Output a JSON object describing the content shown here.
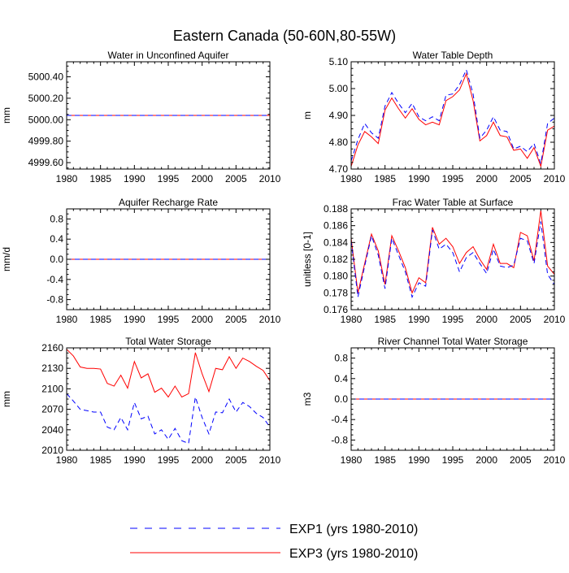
{
  "title": "Eastern Canada (50-60N,80-55W)",
  "legend": {
    "placement": "bottom-center",
    "entries": [
      {
        "name": "EXP1 (yrs 1980-2010)",
        "color": "#0000ff",
        "dash": "dashed"
      },
      {
        "name": "EXP3 (yrs 1980-2010)",
        "color": "#ff0000",
        "dash": "solid"
      }
    ]
  },
  "chart_data": [
    {
      "type": "line",
      "title": "Water in Unconfined Aquifer",
      "ylabel": "mm",
      "xlabel": "",
      "xlim": [
        1980,
        2010
      ],
      "ylim": [
        4999.54,
        5000.54
      ],
      "xticks": [
        1980,
        1985,
        1990,
        1995,
        2000,
        2005,
        2010
      ],
      "yticks": [
        4999.6,
        4999.8,
        5000.0,
        5000.2,
        5000.4
      ],
      "ytick_labels": [
        "4999.60",
        "4999.80",
        "5000.00",
        "5000.20",
        "5000.40"
      ],
      "x": [
        1980,
        2010
      ],
      "series": [
        {
          "name": "EXP3 (yrs 1980-2010)",
          "color": "#ff0000",
          "dash": "solid",
          "values": [
            5000.04,
            5000.04
          ]
        },
        {
          "name": "EXP1 (yrs 1980-2010)",
          "color": "#0000ff",
          "dash": "dashed",
          "values": [
            5000.04,
            5000.04
          ]
        }
      ]
    },
    {
      "type": "line",
      "title": "Water Table Depth",
      "ylabel": "m",
      "xlabel": "",
      "xlim": [
        1980,
        2010
      ],
      "ylim": [
        4.7,
        5.1
      ],
      "xticks": [
        1980,
        1985,
        1990,
        1995,
        2000,
        2005,
        2010
      ],
      "yticks": [
        4.7,
        4.8,
        4.9,
        5.0,
        5.1
      ],
      "ytick_labels": [
        "4.70",
        "4.80",
        "4.90",
        "5.00",
        "5.10"
      ],
      "x": [
        1980,
        1981,
        1982,
        1983,
        1984,
        1985,
        1986,
        1987,
        1988,
        1989,
        1990,
        1991,
        1992,
        1993,
        1994,
        1995,
        1996,
        1997,
        1998,
        1999,
        2000,
        2001,
        2002,
        2003,
        2004,
        2005,
        2006,
        2007,
        2008,
        2009,
        2010
      ],
      "series": [
        {
          "name": "EXP3 (yrs 1980-2010)",
          "color": "#ff0000",
          "dash": "solid",
          "values": [
            4.71,
            4.79,
            4.84,
            4.82,
            4.795,
            4.92,
            4.965,
            4.925,
            4.89,
            4.925,
            4.885,
            4.865,
            4.875,
            4.865,
            4.955,
            4.97,
            4.995,
            5.055,
            4.955,
            4.805,
            4.825,
            4.875,
            4.825,
            4.82,
            4.77,
            4.775,
            4.74,
            4.78,
            4.71,
            4.845,
            4.86
          ]
        },
        {
          "name": "EXP1 (yrs 1980-2010)",
          "color": "#0000ff",
          "dash": "dashed",
          "values": [
            4.73,
            4.81,
            4.87,
            4.835,
            4.815,
            4.935,
            4.985,
            4.945,
            4.91,
            4.945,
            4.895,
            4.88,
            4.895,
            4.88,
            4.975,
            4.98,
            5.015,
            5.07,
            4.98,
            4.815,
            4.845,
            4.895,
            4.845,
            4.84,
            4.775,
            4.785,
            4.765,
            4.795,
            4.72,
            4.87,
            4.89
          ]
        }
      ]
    },
    {
      "type": "line",
      "title": "Aquifer Recharge Rate",
      "ylabel": "mm/d",
      "xlabel": "",
      "xlim": [
        1980,
        2010
      ],
      "ylim": [
        -1.0,
        1.0
      ],
      "xticks": [
        1980,
        1985,
        1990,
        1995,
        2000,
        2005,
        2010
      ],
      "yticks": [
        -0.8,
        -0.4,
        0.0,
        0.4,
        0.8
      ],
      "ytick_labels": [
        "-0.8",
        "-0.4",
        "0.0",
        "0.4",
        "0.8"
      ],
      "x": [
        1980,
        2010
      ],
      "series": [
        {
          "name": "EXP3 (yrs 1980-2010)",
          "color": "#ff0000",
          "dash": "solid",
          "values": [
            0.0,
            0.0
          ]
        },
        {
          "name": "EXP1 (yrs 1980-2010)",
          "color": "#0000ff",
          "dash": "dashed",
          "values": [
            0.0,
            0.0
          ]
        }
      ]
    },
    {
      "type": "line",
      "title": "Frac Water Table at Surface",
      "ylabel": "unitless [0-1]",
      "xlabel": "",
      "xlim": [
        1980,
        2010
      ],
      "ylim": [
        0.176,
        0.188
      ],
      "xticks": [
        1980,
        1985,
        1990,
        1995,
        2000,
        2005,
        2010
      ],
      "yticks": [
        0.176,
        0.178,
        0.18,
        0.182,
        0.184,
        0.186,
        0.188
      ],
      "ytick_labels": [
        "0.176",
        "0.178",
        "0.180",
        "0.182",
        "0.184",
        "0.186",
        "0.188"
      ],
      "x": [
        1980,
        1981,
        1982,
        1983,
        1984,
        1985,
        1986,
        1987,
        1988,
        1989,
        1990,
        1991,
        1992,
        1993,
        1994,
        1995,
        1996,
        1997,
        1998,
        1999,
        2000,
        2001,
        2002,
        2003,
        2004,
        2005,
        2006,
        2007,
        2008,
        2009,
        2010
      ],
      "series": [
        {
          "name": "EXP3 (yrs 1980-2010)",
          "color": "#ff0000",
          "dash": "solid",
          "values": [
            0.1845,
            0.178,
            0.1815,
            0.185,
            0.183,
            0.179,
            0.1848,
            0.183,
            0.181,
            0.178,
            0.1798,
            0.1792,
            0.1858,
            0.1838,
            0.1845,
            0.1835,
            0.1815,
            0.1828,
            0.1835,
            0.182,
            0.1808,
            0.1838,
            0.1815,
            0.1815,
            0.181,
            0.1852,
            0.1848,
            0.1818,
            0.1878,
            0.1812,
            0.1802
          ]
        },
        {
          "name": "EXP1 (yrs 1980-2010)",
          "color": "#0000ff",
          "dash": "dashed",
          "values": [
            0.1842,
            0.1775,
            0.1812,
            0.1848,
            0.1825,
            0.1785,
            0.1845,
            0.1825,
            0.1805,
            0.1775,
            0.1792,
            0.1788,
            0.1855,
            0.1832,
            0.1838,
            0.1828,
            0.1805,
            0.1822,
            0.1828,
            0.1815,
            0.1803,
            0.1832,
            0.1812,
            0.181,
            0.1813,
            0.1845,
            0.1842,
            0.1815,
            0.1865,
            0.1802,
            0.179
          ]
        }
      ]
    },
    {
      "type": "line",
      "title": "Total Water Storage",
      "ylabel": "mm",
      "xlabel": "",
      "xlim": [
        1980,
        2010
      ],
      "ylim": [
        2010,
        2160
      ],
      "xticks": [
        1980,
        1985,
        1990,
        1995,
        2000,
        2005,
        2010
      ],
      "yticks": [
        2010,
        2040,
        2070,
        2100,
        2130,
        2160
      ],
      "ytick_labels": [
        "2010",
        "2040",
        "2070",
        "2100",
        "2130",
        "2160"
      ],
      "x": [
        1980,
        1981,
        1982,
        1983,
        1984,
        1985,
        1986,
        1987,
        1988,
        1989,
        1990,
        1991,
        1992,
        1993,
        1994,
        1995,
        1996,
        1997,
        1998,
        1999,
        2000,
        2001,
        2002,
        2003,
        2004,
        2005,
        2006,
        2007,
        2008,
        2009,
        2010
      ],
      "series": [
        {
          "name": "EXP3 (yrs 1980-2010)",
          "color": "#ff0000",
          "dash": "solid",
          "values": [
            2158,
            2148,
            2132,
            2130,
            2130,
            2129,
            2108,
            2104,
            2120,
            2101,
            2140,
            2116,
            2122,
            2095,
            2101,
            2088,
            2104,
            2088,
            2093,
            2153,
            2122,
            2096,
            2130,
            2128,
            2147,
            2130,
            2145,
            2140,
            2133,
            2127,
            2112
          ]
        },
        {
          "name": "EXP1 (yrs 1980-2010)",
          "color": "#0000ff",
          "dash": "dashed",
          "values": [
            2093,
            2082,
            2070,
            2068,
            2066,
            2066,
            2044,
            2040,
            2058,
            2040,
            2080,
            2056,
            2060,
            2034,
            2040,
            2026,
            2042,
            2024,
            2020,
            2088,
            2058,
            2034,
            2066,
            2065,
            2085,
            2066,
            2080,
            2074,
            2064,
            2058,
            2044
          ]
        }
      ]
    },
    {
      "type": "line",
      "title": "River Channel Total Water Storage",
      "ylabel": "m3",
      "xlabel": "",
      "xlim": [
        1980,
        2010
      ],
      "ylim": [
        -1.0,
        1.0
      ],
      "xticks": [
        1980,
        1985,
        1990,
        1995,
        2000,
        2005,
        2010
      ],
      "yticks": [
        -0.8,
        -0.4,
        0.0,
        0.4,
        0.8
      ],
      "ytick_labels": [
        "-0.8",
        "-0.4",
        "0.0",
        "0.4",
        "0.8"
      ],
      "x": [
        1980,
        2010
      ],
      "series": [
        {
          "name": "EXP3 (yrs 1980-2010)",
          "color": "#ff0000",
          "dash": "solid",
          "values": [
            0.0,
            0.0
          ]
        },
        {
          "name": "EXP1 (yrs 1980-2010)",
          "color": "#0000ff",
          "dash": "dashed",
          "values": [
            0.0,
            0.0
          ]
        }
      ]
    }
  ]
}
